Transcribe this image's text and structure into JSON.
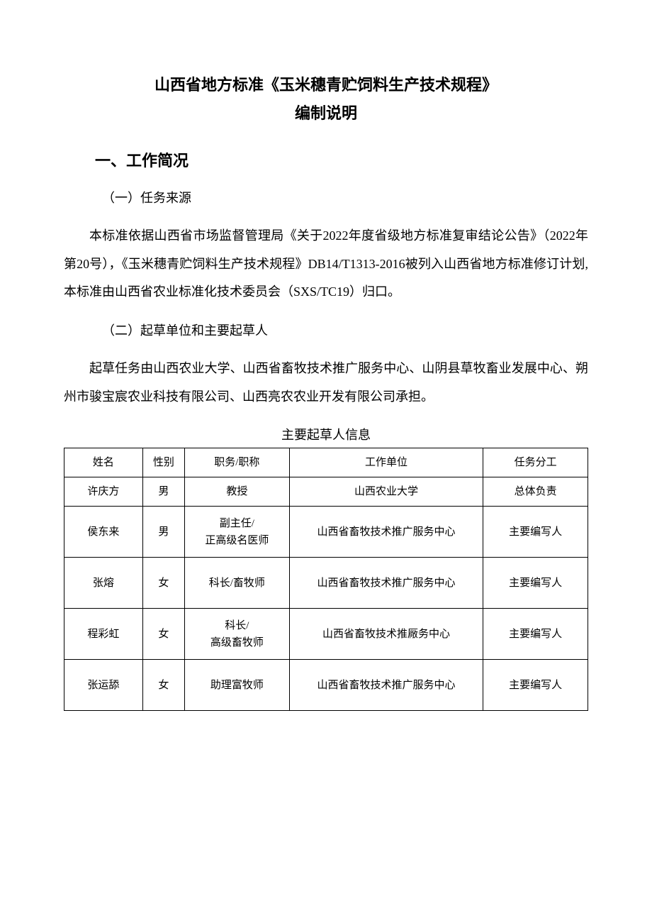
{
  "title_line1": "山西省地方标准《玉米穗青贮饲料生产技术规程》",
  "title_line2": "编制说明",
  "section1": {
    "heading": "一、工作简况",
    "sub1": {
      "heading": "（一）任务来源",
      "paragraph": "本标准依据山西省市场监督管理局《关于2022年度省级地方标准复审结论公告》（2022年第20号），《玉米穗青贮饲料生产技术规程》DB14/T1313-2016被列入山西省地方标准修订计划,本标准由山西省农业标准化技术委员会（SXS/TC19）归口。"
    },
    "sub2": {
      "heading": "（二）起草单位和主要起草人",
      "paragraph": "起草任务由山西农业大学、山西省畜牧技术推广服务中心、山阴县草牧畜业发展中心、朔州市骏宝宸农业科技有限公司、山西亮农农业开发有限公司承担。"
    }
  },
  "table": {
    "caption": "主要起草人信息",
    "headers": {
      "name": "姓名",
      "gender": "性别",
      "title": "职务/职称",
      "org": "工作单位",
      "task": "任务分工"
    },
    "rows": [
      {
        "name": "许庆方",
        "gender": "男",
        "title": "教授",
        "org": "山西农业大学",
        "task": "总体负责",
        "tall": false
      },
      {
        "name": "侯东来",
        "gender": "男",
        "title": "副主任/\n正高级名医师",
        "org": "山西省畜牧技术推广服务中心",
        "task": "主要编写人",
        "tall": true
      },
      {
        "name": "张熔",
        "gender": "女",
        "title": "科长/畜牧师",
        "org": "山西省畜牧技术推广服务中心",
        "task": "主要编写人",
        "tall": true
      },
      {
        "name": "程彩虹",
        "gender": "女",
        "title": "科长/\n高级畜牧师",
        "org": "山西省畜牧技术推厰务中心",
        "task": "主要编写人",
        "tall": true
      },
      {
        "name": "张运舔",
        "gender": "女",
        "title": "助理富牧师",
        "org": "山西省畜牧技术推广服务中心",
        "task": "主要编写人",
        "tall": true
      }
    ]
  }
}
